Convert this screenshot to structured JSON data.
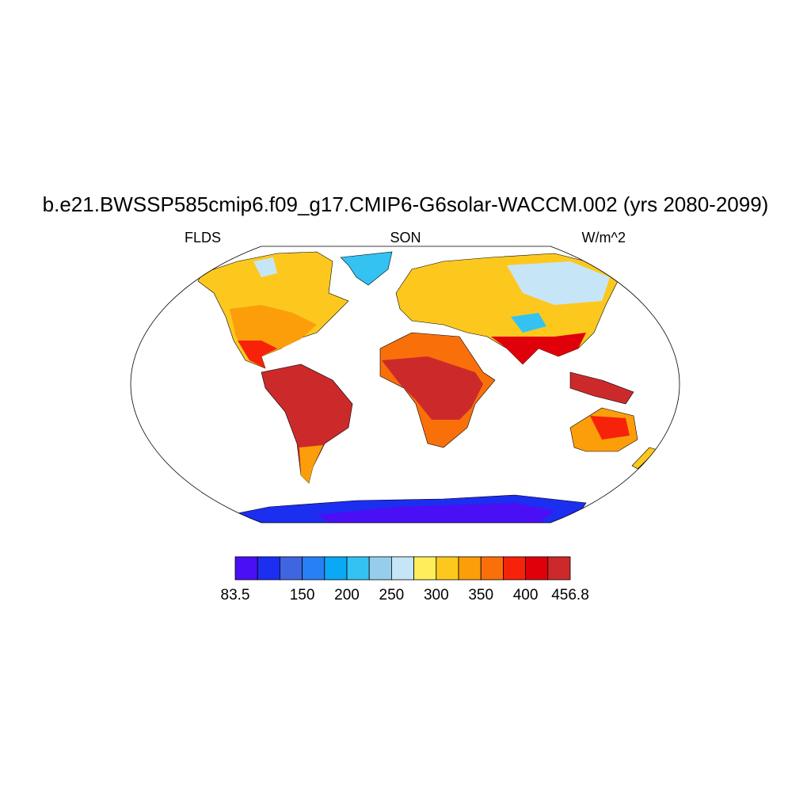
{
  "title": "b.e21.BWSSP585cmip6.f09_g17.CMIP6-G6solar-WACCM.002 (yrs 2080-2099)",
  "left_label": "FLDS",
  "center_label": "SON",
  "right_label": "W/m^2",
  "colorbar": {
    "colors": [
      "#4b0ff5",
      "#1c2ef0",
      "#3f66e0",
      "#2780f5",
      "#0ba8f5",
      "#34c2f3",
      "#96cdeb",
      "#c6e6f7",
      "#ffee5a",
      "#fdc81e",
      "#fb9e0a",
      "#f9700a",
      "#f7220a",
      "#e0000a",
      "#cc2a2a"
    ],
    "labels": [
      83.5,
      150,
      200,
      250,
      300,
      350,
      400,
      456.8
    ]
  }
}
